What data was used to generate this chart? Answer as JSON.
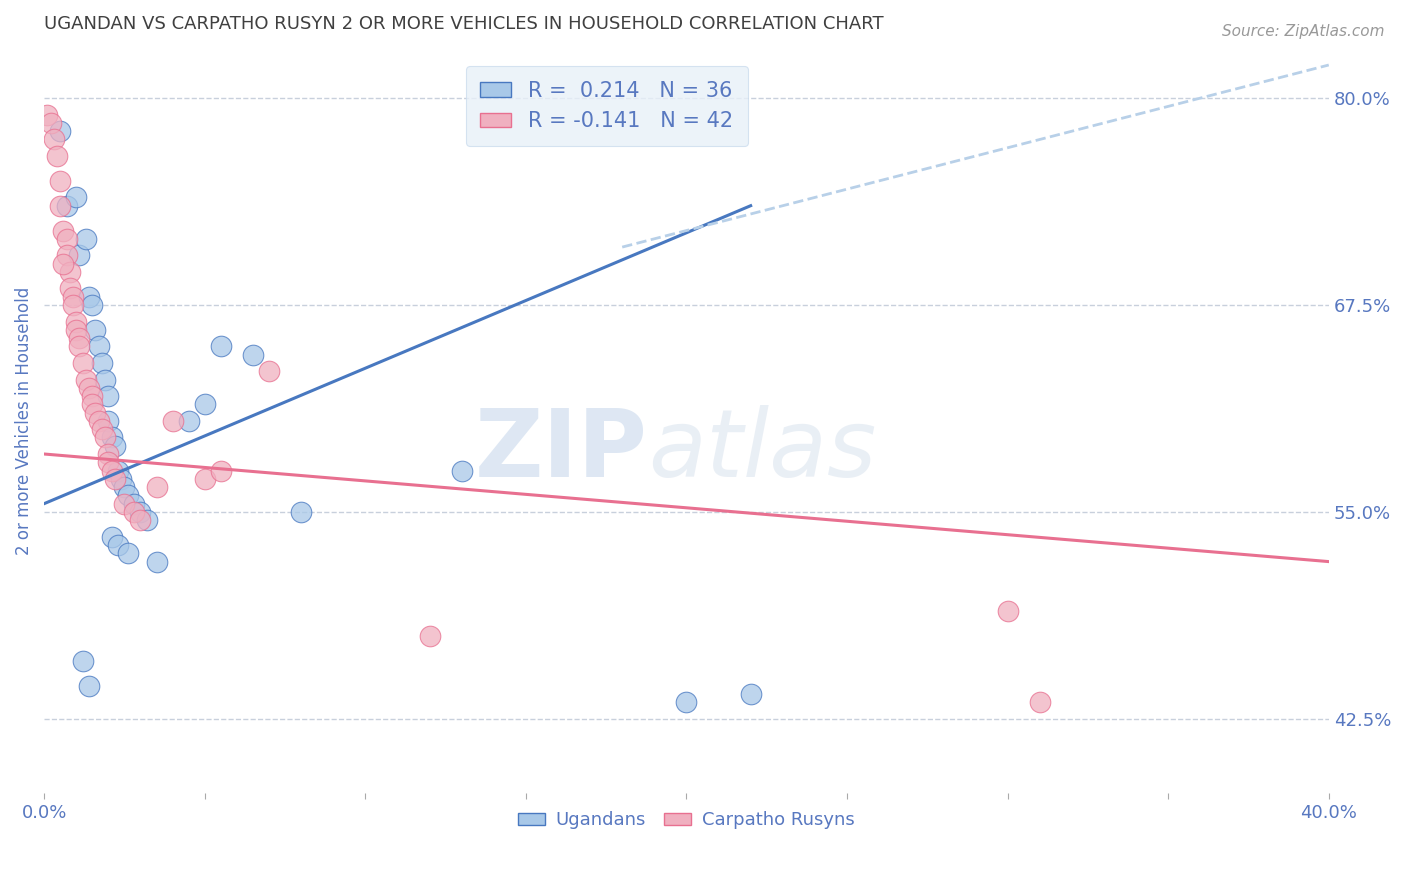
{
  "title": "UGANDAN VS CARPATHO RUSYN 2 OR MORE VEHICLES IN HOUSEHOLD CORRELATION CHART",
  "source": "Source: ZipAtlas.com",
  "ylabel": "2 or more Vehicles in Household",
  "xlim": [
    0.0,
    40.0
  ],
  "ylim": [
    38.0,
    83.0
  ],
  "yticks_right": [
    42.5,
    55.0,
    67.5,
    80.0
  ],
  "ytick_right_labels": [
    "42.5%",
    "55.0%",
    "67.5%",
    "80.0%"
  ],
  "ugandan_R": 0.214,
  "ugandan_N": 36,
  "carpatho_R": -0.141,
  "carpatho_N": 42,
  "blue_color": "#a8c8e8",
  "pink_color": "#f0b0c0",
  "blue_line_color": "#4878c0",
  "pink_line_color": "#e87090",
  "dashed_line_color": "#b8d0e8",
  "title_color": "#404040",
  "tick_color": "#5878c0",
  "grid_color": "#c8d0dc",
  "background_color": "#ffffff",
  "legend_box_color": "#e8f0f8",
  "ugandan_x": [
    0.5,
    0.7,
    1.0,
    1.1,
    1.3,
    1.4,
    1.5,
    1.6,
    1.7,
    1.8,
    1.9,
    2.0,
    2.0,
    2.1,
    2.2,
    2.3,
    2.4,
    2.5,
    2.6,
    2.8,
    3.0,
    3.2,
    4.5,
    5.0,
    5.5,
    6.5,
    8.0,
    13.0,
    20.0,
    22.0,
    2.1,
    2.3,
    2.6,
    3.5,
    1.2,
    1.4
  ],
  "ugandan_y": [
    78.0,
    73.5,
    74.0,
    70.5,
    71.5,
    68.0,
    67.5,
    66.0,
    65.0,
    64.0,
    63.0,
    62.0,
    60.5,
    59.5,
    59.0,
    57.5,
    57.0,
    56.5,
    56.0,
    55.5,
    55.0,
    54.5,
    60.5,
    61.5,
    65.0,
    64.5,
    55.0,
    57.5,
    43.5,
    44.0,
    53.5,
    53.0,
    52.5,
    52.0,
    46.0,
    44.5
  ],
  "carpatho_x": [
    0.1,
    0.2,
    0.3,
    0.4,
    0.5,
    0.5,
    0.6,
    0.7,
    0.7,
    0.8,
    0.8,
    0.9,
    0.9,
    1.0,
    1.0,
    1.1,
    1.1,
    1.2,
    1.3,
    1.4,
    1.5,
    1.5,
    1.6,
    1.7,
    1.8,
    1.9,
    2.0,
    2.0,
    2.1,
    2.2,
    2.5,
    2.8,
    3.0,
    4.0,
    5.0,
    5.5,
    7.0,
    12.0,
    30.0,
    31.0,
    3.5,
    0.6
  ],
  "carpatho_y": [
    79.0,
    78.5,
    77.5,
    76.5,
    75.0,
    73.5,
    72.0,
    71.5,
    70.5,
    69.5,
    68.5,
    68.0,
    67.5,
    66.5,
    66.0,
    65.5,
    65.0,
    64.0,
    63.0,
    62.5,
    62.0,
    61.5,
    61.0,
    60.5,
    60.0,
    59.5,
    58.5,
    58.0,
    57.5,
    57.0,
    55.5,
    55.0,
    54.5,
    60.5,
    57.0,
    57.5,
    63.5,
    47.5,
    49.0,
    43.5,
    56.5,
    70.0
  ],
  "blue_line_x0": 0.0,
  "blue_line_x1": 22.0,
  "blue_line_y0": 55.5,
  "blue_line_y1": 73.5,
  "pink_line_x0": 0.0,
  "pink_line_x1": 40.0,
  "pink_line_y0": 58.5,
  "pink_line_y1": 52.0,
  "dashed_line_x0": 18.0,
  "dashed_line_x1": 40.0,
  "dashed_line_y0": 71.0,
  "dashed_line_y1": 82.0
}
